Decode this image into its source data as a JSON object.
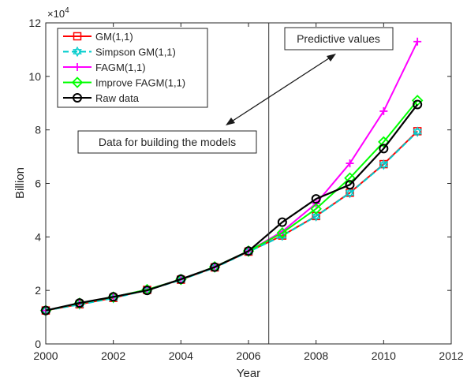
{
  "chart_data": {
    "type": "line",
    "xlabel": "Year",
    "ylabel": "Billion",
    "y_exponent_label": "×10",
    "y_exponent_power": "4",
    "xlim": [
      2000,
      2012
    ],
    "ylim": [
      0,
      12
    ],
    "y_scale_factor": 10000,
    "xticks": [
      2000,
      2002,
      2004,
      2006,
      2008,
      2010,
      2012
    ],
    "yticks": [
      0,
      2,
      4,
      6,
      8,
      10,
      12
    ],
    "split_year": 2006.6,
    "annotations": {
      "predictive": "Predictive values",
      "building": "Data for building the models"
    },
    "x": [
      2000,
      2001,
      2002,
      2003,
      2004,
      2005,
      2006,
      2007,
      2008,
      2009,
      2010,
      2011
    ],
    "series": [
      {
        "name": "GM(1,1)",
        "color": "#ff0000",
        "marker": "square",
        "dash": "",
        "values": [
          1.25,
          1.48,
          1.72,
          2.02,
          2.4,
          2.86,
          3.45,
          4.05,
          4.78,
          5.65,
          6.72,
          7.95
        ]
      },
      {
        "name": "Simpson GM(1,1)",
        "color": "#00cccc",
        "marker": "hexagram",
        "dash": "7,4",
        "values": [
          1.25,
          1.47,
          1.71,
          2.01,
          2.39,
          2.85,
          3.44,
          4.04,
          4.77,
          5.64,
          6.7,
          7.93
        ]
      },
      {
        "name": "FAGM(1,1)",
        "color": "#ff00ff",
        "marker": "plus",
        "dash": "",
        "values": [
          1.25,
          1.52,
          1.75,
          2.03,
          2.41,
          2.88,
          3.47,
          4.2,
          5.25,
          6.75,
          8.7,
          11.3
        ]
      },
      {
        "name": "Improve FAGM(1,1)",
        "color": "#00ff00",
        "marker": "diamond",
        "dash": "",
        "values": [
          1.25,
          1.52,
          1.75,
          2.03,
          2.41,
          2.88,
          3.47,
          4.15,
          5.05,
          6.2,
          7.55,
          9.1
        ]
      },
      {
        "name": "Raw data",
        "color": "#000000",
        "marker": "circle",
        "dash": "",
        "values": [
          1.25,
          1.53,
          1.76,
          2.0,
          2.42,
          2.87,
          3.47,
          4.55,
          5.42,
          5.95,
          7.3,
          8.95
        ]
      }
    ]
  }
}
